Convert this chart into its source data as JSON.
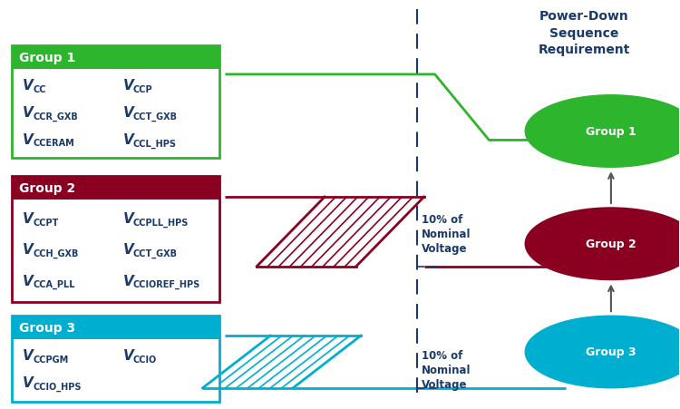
{
  "title": "Power-Down\nSequence\nRequirement",
  "title_color": "#1a3a6b",
  "bg_color": "#ffffff",
  "group1_color": "#2db52d",
  "group2_color": "#8b0020",
  "group3_color": "#00afd0",
  "groups": [
    {
      "label": "Group 1",
      "color": "#2db52d",
      "text_lines": [
        [
          "V",
          "CC",
          "V",
          "CCP"
        ],
        [
          "V",
          "CCR_GXB",
          "V",
          "CCT_GXB"
        ],
        [
          "V",
          "CCERAM",
          "V",
          "CCL_HPS"
        ]
      ]
    },
    {
      "label": "Group 2",
      "color": "#8b0020",
      "text_lines": [
        [
          "V",
          "CCPT",
          "V",
          "CCPLL_HPS"
        ],
        [
          "V",
          "CCH_GXB",
          "V",
          "CCT_GXB"
        ],
        [
          "V",
          "CCA_PLL",
          "V",
          "CCIOREF_HPS"
        ]
      ]
    },
    {
      "label": "Group 3",
      "color": "#00afd0",
      "text_lines": [
        [
          "V",
          "CCPGM",
          "V",
          "CCIO"
        ],
        [
          "V",
          "CCIO_HPS",
          "",
          ""
        ]
      ]
    }
  ]
}
